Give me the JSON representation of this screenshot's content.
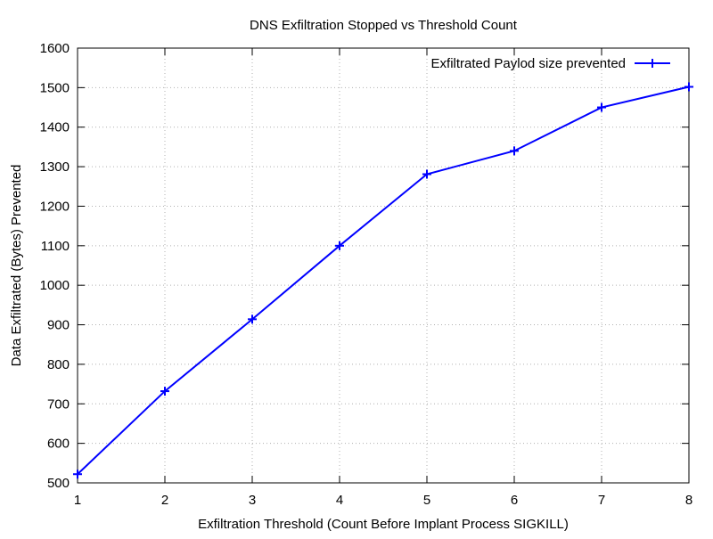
{
  "chart_data": {
    "type": "line",
    "title": "DNS Exfiltration Stopped vs Threshold Count",
    "xlabel": "Exfiltration Threshold (Count Before Implant Process SIGKILL)",
    "ylabel": "Data Exfiltrated (Bytes) Prevented",
    "xlim": [
      1,
      8
    ],
    "ylim": [
      500,
      1600
    ],
    "x_ticks": [
      1,
      2,
      3,
      4,
      5,
      6,
      7,
      8
    ],
    "y_ticks": [
      500,
      600,
      700,
      800,
      900,
      1000,
      1100,
      1200,
      1300,
      1400,
      1500,
      1600
    ],
    "grid": true,
    "legend_position": "top-right",
    "series": [
      {
        "name": "Exfiltrated Paylod size prevented",
        "color": "#0000ff",
        "marker": "plus",
        "x": [
          1,
          2,
          3,
          4,
          5,
          6,
          7,
          8
        ],
        "y": [
          522,
          732,
          914,
          1100,
          1281,
          1340,
          1450,
          1502
        ]
      }
    ]
  }
}
